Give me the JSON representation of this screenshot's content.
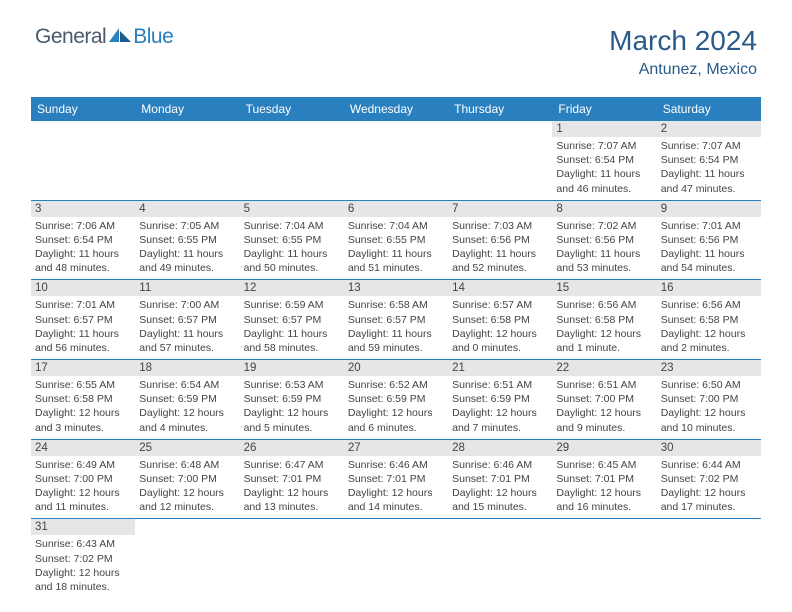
{
  "brand": {
    "text1": "General",
    "text2": "Blue",
    "color1": "#4a5a6a",
    "color2": "#2a7fbf"
  },
  "header": {
    "title": "March 2024",
    "location": "Antunez, Mexico",
    "title_color": "#2a5a8a"
  },
  "colors": {
    "header_bg": "#2a7fbf",
    "header_text": "#ffffff",
    "daynum_bg": "#e6e6e6",
    "text": "#444444",
    "border": "#2a7fbf"
  },
  "day_labels": [
    "Sunday",
    "Monday",
    "Tuesday",
    "Wednesday",
    "Thursday",
    "Friday",
    "Saturday"
  ],
  "days": {
    "1": {
      "sunrise": "7:07 AM",
      "sunset": "6:54 PM",
      "daylight": "11 hours and 46 minutes."
    },
    "2": {
      "sunrise": "7:07 AM",
      "sunset": "6:54 PM",
      "daylight": "11 hours and 47 minutes."
    },
    "3": {
      "sunrise": "7:06 AM",
      "sunset": "6:54 PM",
      "daylight": "11 hours and 48 minutes."
    },
    "4": {
      "sunrise": "7:05 AM",
      "sunset": "6:55 PM",
      "daylight": "11 hours and 49 minutes."
    },
    "5": {
      "sunrise": "7:04 AM",
      "sunset": "6:55 PM",
      "daylight": "11 hours and 50 minutes."
    },
    "6": {
      "sunrise": "7:04 AM",
      "sunset": "6:55 PM",
      "daylight": "11 hours and 51 minutes."
    },
    "7": {
      "sunrise": "7:03 AM",
      "sunset": "6:56 PM",
      "daylight": "11 hours and 52 minutes."
    },
    "8": {
      "sunrise": "7:02 AM",
      "sunset": "6:56 PM",
      "daylight": "11 hours and 53 minutes."
    },
    "9": {
      "sunrise": "7:01 AM",
      "sunset": "6:56 PM",
      "daylight": "11 hours and 54 minutes."
    },
    "10": {
      "sunrise": "7:01 AM",
      "sunset": "6:57 PM",
      "daylight": "11 hours and 56 minutes."
    },
    "11": {
      "sunrise": "7:00 AM",
      "sunset": "6:57 PM",
      "daylight": "11 hours and 57 minutes."
    },
    "12": {
      "sunrise": "6:59 AM",
      "sunset": "6:57 PM",
      "daylight": "11 hours and 58 minutes."
    },
    "13": {
      "sunrise": "6:58 AM",
      "sunset": "6:57 PM",
      "daylight": "11 hours and 59 minutes."
    },
    "14": {
      "sunrise": "6:57 AM",
      "sunset": "6:58 PM",
      "daylight": "12 hours and 0 minutes."
    },
    "15": {
      "sunrise": "6:56 AM",
      "sunset": "6:58 PM",
      "daylight": "12 hours and 1 minute."
    },
    "16": {
      "sunrise": "6:56 AM",
      "sunset": "6:58 PM",
      "daylight": "12 hours and 2 minutes."
    },
    "17": {
      "sunrise": "6:55 AM",
      "sunset": "6:58 PM",
      "daylight": "12 hours and 3 minutes."
    },
    "18": {
      "sunrise": "6:54 AM",
      "sunset": "6:59 PM",
      "daylight": "12 hours and 4 minutes."
    },
    "19": {
      "sunrise": "6:53 AM",
      "sunset": "6:59 PM",
      "daylight": "12 hours and 5 minutes."
    },
    "20": {
      "sunrise": "6:52 AM",
      "sunset": "6:59 PM",
      "daylight": "12 hours and 6 minutes."
    },
    "21": {
      "sunrise": "6:51 AM",
      "sunset": "6:59 PM",
      "daylight": "12 hours and 7 minutes."
    },
    "22": {
      "sunrise": "6:51 AM",
      "sunset": "7:00 PM",
      "daylight": "12 hours and 9 minutes."
    },
    "23": {
      "sunrise": "6:50 AM",
      "sunset": "7:00 PM",
      "daylight": "12 hours and 10 minutes."
    },
    "24": {
      "sunrise": "6:49 AM",
      "sunset": "7:00 PM",
      "daylight": "12 hours and 11 minutes."
    },
    "25": {
      "sunrise": "6:48 AM",
      "sunset": "7:00 PM",
      "daylight": "12 hours and 12 minutes."
    },
    "26": {
      "sunrise": "6:47 AM",
      "sunset": "7:01 PM",
      "daylight": "12 hours and 13 minutes."
    },
    "27": {
      "sunrise": "6:46 AM",
      "sunset": "7:01 PM",
      "daylight": "12 hours and 14 minutes."
    },
    "28": {
      "sunrise": "6:46 AM",
      "sunset": "7:01 PM",
      "daylight": "12 hours and 15 minutes."
    },
    "29": {
      "sunrise": "6:45 AM",
      "sunset": "7:01 PM",
      "daylight": "12 hours and 16 minutes."
    },
    "30": {
      "sunrise": "6:44 AM",
      "sunset": "7:02 PM",
      "daylight": "12 hours and 17 minutes."
    },
    "31": {
      "sunrise": "6:43 AM",
      "sunset": "7:02 PM",
      "daylight": "12 hours and 18 minutes."
    }
  },
  "layout": {
    "first_day_column": 5,
    "num_days": 31,
    "columns": 7
  },
  "labels": {
    "sunrise_prefix": "Sunrise: ",
    "sunset_prefix": "Sunset: ",
    "daylight_prefix": "Daylight: "
  }
}
